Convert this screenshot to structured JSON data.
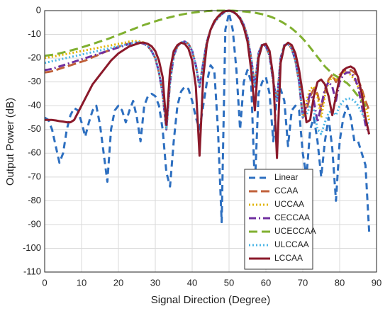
{
  "chart_data": {
    "type": "line",
    "xlabel": "Signal Direction (Degree)",
    "ylabel": "Output Power (dB)",
    "xlim": [
      0,
      90
    ],
    "ylim": [
      -110,
      0
    ],
    "xticks": [
      0,
      10,
      20,
      30,
      40,
      50,
      60,
      70,
      80,
      90
    ],
    "yticks": [
      0,
      -10,
      -20,
      -30,
      -40,
      -50,
      -60,
      -70,
      -80,
      -90,
      -100,
      -110
    ],
    "grid": true,
    "legend": "lower center",
    "x": [
      0,
      1,
      2,
      3,
      4,
      5,
      6,
      7,
      8,
      9,
      10,
      11,
      12,
      13,
      14,
      15,
      16,
      17,
      18,
      19,
      20,
      21,
      22,
      23,
      24,
      25,
      26,
      27,
      28,
      29,
      30,
      31,
      32,
      33,
      34,
      35,
      36,
      37,
      38,
      39,
      40,
      41,
      42,
      43,
      44,
      45,
      46,
      47,
      48,
      49,
      50,
      51,
      52,
      53,
      54,
      55,
      56,
      57,
      58,
      59,
      60,
      61,
      62,
      63,
      64,
      65,
      66,
      67,
      68,
      69,
      70,
      71,
      72,
      73,
      74,
      75,
      76,
      77,
      78,
      79,
      80,
      81,
      82,
      83,
      84,
      85,
      86,
      87,
      88
    ],
    "series": [
      {
        "name": "Linear",
        "color": "#2d6fc0",
        "dash": "9,6",
        "width": 3,
        "values": [
          -45,
          -46,
          -50,
          -57,
          -64,
          -60,
          -50,
          -44,
          -41,
          -42,
          -47,
          -53,
          -47,
          -42,
          -40,
          -48,
          -60,
          -72,
          -50,
          -42,
          -40,
          -42,
          -47,
          -42,
          -38,
          -45,
          -55,
          -40,
          -36,
          -35,
          -36,
          -40,
          -50,
          -68,
          -74,
          -55,
          -40,
          -34,
          -32,
          -33,
          -38,
          -45,
          -50,
          -40,
          -30,
          -23,
          -25,
          -50,
          -89,
          -8,
          -1,
          -8,
          -25,
          -50,
          -30,
          -25,
          -30,
          -74,
          -35,
          -30,
          -28,
          -35,
          -55,
          -35,
          -33,
          -38,
          -57,
          -42,
          -40,
          -42,
          -60,
          -70,
          -50,
          -45,
          -55,
          -70,
          -55,
          -45,
          -58,
          -80,
          -55,
          -45,
          -40,
          -45,
          -55,
          -55,
          -60,
          -65,
          -93
        ]
      },
      {
        "name": "CCAA",
        "color": "#c0603a",
        "dash": "12,5",
        "width": 3,
        "values": [
          -26,
          -25.8,
          -25.5,
          -25,
          -24.5,
          -24,
          -23.5,
          -23,
          -22.5,
          -22,
          -21.5,
          -21,
          -20.3,
          -19.6,
          -19,
          -18.3,
          -17.6,
          -17,
          -16.4,
          -15.8,
          -15.2,
          -14.7,
          -14.2,
          -13.8,
          -13.5,
          -13.5,
          -13.5,
          -14,
          -15,
          -17,
          -20,
          -26,
          -35,
          -50,
          -30,
          -19,
          -15,
          -13.5,
          -13,
          -14,
          -17,
          -23,
          -32,
          -22,
          -13,
          -8,
          -5,
          -3,
          -1.5,
          -0.5,
          0,
          -0.5,
          -1.5,
          -3,
          -6,
          -11,
          -20,
          -32,
          -18,
          -14,
          -15,
          -19,
          -30,
          -38,
          -20,
          -14.5,
          -14,
          -16,
          -21,
          -30,
          -45,
          -42,
          -36,
          -33,
          -35,
          -42,
          -34,
          -29,
          -27,
          -30,
          -27,
          -25.5,
          -25,
          -25,
          -26,
          -29,
          -33,
          -38,
          -42
        ]
      },
      {
        "name": "UCCAA",
        "color": "#e0b400",
        "dash": "2,3",
        "width": 3,
        "values": [
          -20,
          -19.7,
          -19.4,
          -19.1,
          -18.8,
          -18.5,
          -18.2,
          -17.9,
          -17.6,
          -17.3,
          -17,
          -16.7,
          -16.4,
          -16.1,
          -15.8,
          -15.5,
          -15.2,
          -14.9,
          -14.6,
          -14.3,
          -14,
          -13.7,
          -13.4,
          -13,
          -12.8,
          -12.8,
          -13,
          -13.5,
          -15,
          -17,
          -20,
          -26,
          -35,
          -50,
          -30,
          -19,
          -15,
          -13.5,
          -13,
          -14,
          -17,
          -23,
          -32,
          -22,
          -13,
          -8,
          -5,
          -3,
          -1.5,
          -0.5,
          0,
          -0.5,
          -1.5,
          -3,
          -6,
          -11,
          -20,
          -32,
          -18,
          -14,
          -15,
          -19,
          -30,
          -38,
          -20,
          -14.5,
          -14,
          -16,
          -21,
          -30,
          -45,
          -38,
          -33,
          -32,
          -36,
          -45,
          -36,
          -30,
          -28,
          -29,
          -27,
          -26,
          -26,
          -27,
          -29,
          -32,
          -34,
          -40,
          -46
        ]
      },
      {
        "name": "CECCAA",
        "color": "#7030a0",
        "dash": "10,4,2,4",
        "width": 3,
        "values": [
          -25,
          -24.8,
          -24.5,
          -24,
          -23.5,
          -23,
          -22.5,
          -22,
          -21.5,
          -21,
          -20.5,
          -20,
          -19.5,
          -19,
          -18.5,
          -18,
          -17.5,
          -17,
          -16.5,
          -16,
          -15.5,
          -15,
          -14.5,
          -14,
          -13.5,
          -13.5,
          -13.5,
          -14,
          -15,
          -17,
          -20,
          -26,
          -35,
          -50,
          -30,
          -19,
          -15,
          -13.5,
          -13,
          -14,
          -17,
          -23,
          -32,
          -22,
          -13,
          -8,
          -5,
          -3,
          -1.5,
          -0.5,
          0,
          -0.5,
          -1.5,
          -3,
          -6,
          -11,
          -20,
          -32,
          -18,
          -14,
          -15,
          -19,
          -30,
          -38,
          -20,
          -14.5,
          -14,
          -16,
          -21,
          -30,
          -45,
          -40,
          -35,
          -38,
          -47,
          -40,
          -33,
          -30,
          -32,
          -38,
          -30,
          -27,
          -26,
          -26,
          -28,
          -32,
          -40,
          -48,
          -52
        ]
      },
      {
        "name": "UCECCAA",
        "color": "#80b030",
        "dash": "12,6",
        "width": 3,
        "values": [
          -19,
          -18.8,
          -18.6,
          -18.3,
          -18,
          -17.6,
          -17.2,
          -16.8,
          -16.4,
          -16,
          -15.5,
          -15,
          -14.5,
          -14,
          -13.5,
          -13,
          -12.5,
          -12,
          -11.4,
          -10.8,
          -10.2,
          -9.6,
          -9,
          -8.4,
          -7.8,
          -7.2,
          -6.6,
          -6,
          -5.5,
          -5,
          -4.5,
          -4,
          -3.6,
          -3.2,
          -2.8,
          -2.4,
          -2,
          -1.7,
          -1.4,
          -1.1,
          -0.9,
          -0.7,
          -0.5,
          -0.35,
          -0.2,
          -0.1,
          0,
          0,
          0,
          0,
          0,
          0,
          -0.1,
          -0.2,
          -0.35,
          -0.5,
          -0.7,
          -0.9,
          -1.2,
          -1.5,
          -1.9,
          -2.4,
          -3,
          -3.7,
          -4.5,
          -5.4,
          -6.4,
          -7.5,
          -8.8,
          -10.2,
          -11.8,
          -13.5,
          -15.5,
          -17.5,
          -19.5,
          -21.5,
          -23.5,
          -25,
          -26.5,
          -27.5,
          -28.5,
          -29.5,
          -30.5,
          -32,
          -34,
          -36,
          -38,
          -40,
          -41
        ]
      },
      {
        "name": "ULCCAA",
        "color": "#4cb6e6",
        "dash": "2,3",
        "width": 3,
        "values": [
          -22,
          -21.65,
          -21.3,
          -20.95,
          -20.6,
          -20.25,
          -19.9,
          -19.55,
          -19.2,
          -18.85,
          -18.5,
          -18.15,
          -17.8,
          -17.45,
          -17.1,
          -16.75,
          -16.4,
          -16.05,
          -15.7,
          -15.35,
          -15,
          -14.65,
          -14.3,
          -13.95,
          -13.6,
          -13.3,
          -13.3,
          -13.8,
          -15,
          -17,
          -20,
          -26,
          -35,
          -50,
          -30,
          -19,
          -15,
          -13.5,
          -13,
          -14,
          -17,
          -23,
          -32,
          -22,
          -13,
          -8,
          -5,
          -3,
          -1.5,
          -0.5,
          0,
          -0.5,
          -1.5,
          -3,
          -6,
          -11,
          -20,
          -32,
          -18,
          -14,
          -15,
          -19,
          -30,
          -38,
          -20,
          -14.5,
          -14,
          -16,
          -21,
          -30,
          -45,
          -44,
          -40,
          -42,
          -50,
          -52,
          -47,
          -43,
          -42,
          -44,
          -40,
          -38,
          -37,
          -37,
          -38,
          -40,
          -43,
          -46,
          -48
        ]
      },
      {
        "name": "LCCAA",
        "color": "#8b1a2b",
        "dash": "none",
        "width": 3,
        "values": [
          -46,
          -46,
          -46,
          -46.2,
          -46.5,
          -46.7,
          -47,
          -47,
          -46,
          -43,
          -40,
          -37,
          -34,
          -31,
          -29,
          -27,
          -25,
          -23,
          -21,
          -19.5,
          -18,
          -17,
          -16,
          -15,
          -14.5,
          -14,
          -13.5,
          -13.5,
          -14,
          -15,
          -17,
          -21,
          -28,
          -48,
          -25,
          -17,
          -14.5,
          -13.5,
          -14,
          -16,
          -21,
          -32,
          -61,
          -28,
          -14,
          -8,
          -4.5,
          -2.5,
          -1,
          -0.2,
          0,
          -0.3,
          -1.5,
          -3.5,
          -7,
          -13,
          -25,
          -42,
          -20,
          -14.5,
          -14,
          -17,
          -28,
          -62,
          -22,
          -15,
          -13.5,
          -14.5,
          -18,
          -25,
          -35,
          -47,
          -46,
          -36,
          -30,
          -29,
          -31,
          -36,
          -44,
          -36,
          -28,
          -25,
          -24,
          -23.5,
          -24.5,
          -28,
          -35,
          -45,
          -52
        ]
      }
    ]
  }
}
